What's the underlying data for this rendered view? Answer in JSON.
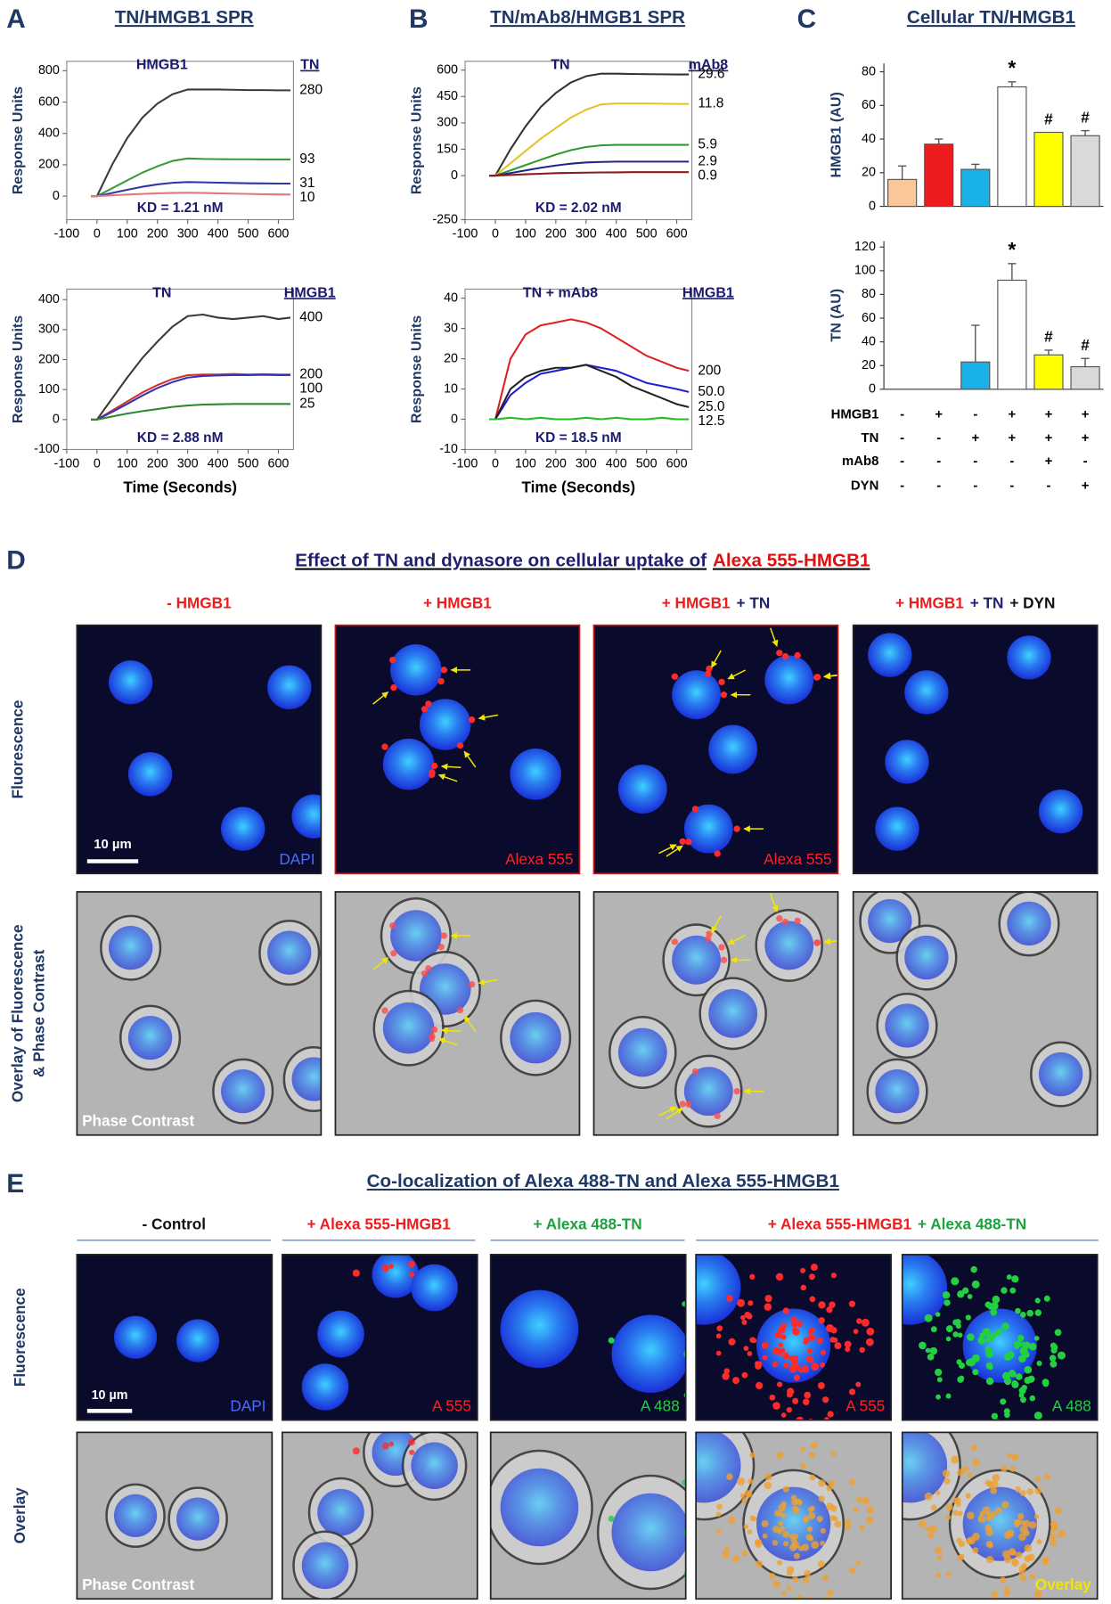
{
  "panels": [
    {
      "letter": "A",
      "title": "TN/HMGB1 SPR"
    },
    {
      "letter": "B",
      "title": "TN/mAb8/HMGB1 SPR"
    },
    {
      "letter": "C",
      "title": "Cellular TN/HMGB1"
    }
  ],
  "chart_data": [
    {
      "type": "line",
      "label": "HMGB1",
      "legend_title": "TN",
      "annotation": "KD = 1.21 nM",
      "y_label": "Response Units",
      "x": [
        -20,
        0,
        50,
        100,
        150,
        200,
        250,
        300,
        350,
        400,
        450,
        500,
        550,
        600,
        640
      ],
      "xlim": [
        -100,
        650
      ],
      "xticks": [
        -100,
        0,
        100,
        200,
        300,
        400,
        500,
        600
      ],
      "ylim": [
        -150,
        860
      ],
      "yticks": [
        0,
        200,
        400,
        600,
        800
      ],
      "series": [
        {
          "name": "280",
          "color": "#3a3a3a",
          "values": [
            0,
            0,
            200,
            370,
            500,
            590,
            650,
            680,
            680,
            680,
            678,
            676,
            676,
            675,
            675
          ]
        },
        {
          "name": "93",
          "color": "#3c9a3c",
          "values": [
            0,
            0,
            50,
            100,
            150,
            190,
            225,
            240,
            237,
            236,
            235,
            235,
            234,
            234,
            234
          ]
        },
        {
          "name": "31",
          "color": "#3535a8",
          "values": [
            0,
            0,
            20,
            40,
            60,
            75,
            85,
            90,
            88,
            86,
            84,
            82,
            81,
            80,
            80
          ]
        },
        {
          "name": "10",
          "color": "#e07a7a",
          "values": [
            0,
            0,
            5,
            10,
            14,
            18,
            20,
            22,
            20,
            18,
            16,
            14,
            12,
            11,
            10
          ]
        }
      ]
    },
    {
      "type": "line",
      "label": "TN",
      "legend_title": "HMGB1",
      "annotation": "KD = 2.88 nM",
      "y_label": "Response Units",
      "x_label": "Time (Seconds)",
      "x": [
        -20,
        0,
        50,
        100,
        150,
        200,
        250,
        300,
        350,
        400,
        450,
        500,
        550,
        600,
        640
      ],
      "xlim": [
        -100,
        650
      ],
      "xticks": [
        -100,
        0,
        100,
        200,
        300,
        400,
        500,
        600
      ],
      "ylim": [
        -100,
        435
      ],
      "yticks": [
        -100,
        0,
        100,
        200,
        300,
        400
      ],
      "series": [
        {
          "name": "400",
          "color": "#3a3a3a",
          "values": [
            0,
            0,
            70,
            140,
            205,
            260,
            310,
            345,
            350,
            340,
            335,
            340,
            345,
            335,
            340
          ]
        },
        {
          "name": "200",
          "color": "#d03030",
          "values": [
            0,
            0,
            30,
            60,
            90,
            115,
            135,
            148,
            150,
            150,
            152,
            150,
            151,
            150,
            150
          ]
        },
        {
          "name": "100",
          "color": "#3535b0",
          "values": [
            0,
            0,
            25,
            52,
            80,
            105,
            125,
            140,
            145,
            147,
            148,
            148,
            149,
            148,
            148
          ]
        },
        {
          "name": "25",
          "color": "#2e8a2e",
          "values": [
            0,
            0,
            10,
            20,
            28,
            35,
            42,
            47,
            50,
            51,
            52,
            52,
            52,
            52,
            52
          ]
        }
      ]
    },
    {
      "type": "line",
      "label": "TN",
      "legend_title": "mAb8",
      "annotation": "KD = 2.02 nM",
      "y_label": "Response Units",
      "x": [
        -20,
        0,
        50,
        100,
        150,
        200,
        250,
        300,
        350,
        400,
        450,
        500,
        550,
        600,
        640
      ],
      "xlim": [
        -100,
        650
      ],
      "xticks": [
        -100,
        0,
        100,
        200,
        300,
        400,
        500,
        600
      ],
      "ylim": [
        -250,
        650
      ],
      "yticks": [
        -250,
        0,
        150,
        300,
        450,
        600
      ],
      "series": [
        {
          "name": "29.6",
          "color": "#333333",
          "values": [
            0,
            0,
            150,
            280,
            390,
            470,
            530,
            565,
            580,
            580,
            578,
            577,
            576,
            575,
            575
          ]
        },
        {
          "name": "11.8",
          "color": "#e6c229",
          "values": [
            0,
            0,
            70,
            140,
            210,
            270,
            330,
            375,
            405,
            410,
            410,
            410,
            409,
            408,
            408
          ]
        },
        {
          "name": "5.9",
          "color": "#2e9b2e",
          "values": [
            0,
            0,
            30,
            60,
            90,
            120,
            145,
            163,
            172,
            175,
            175,
            175,
            175,
            175,
            175
          ]
        },
        {
          "name": "2.9",
          "color": "#23238e",
          "values": [
            0,
            0,
            15,
            30,
            45,
            58,
            68,
            75,
            78,
            80,
            80,
            80,
            80,
            80,
            80
          ]
        },
        {
          "name": "0.9",
          "color": "#8b1a1a",
          "values": [
            0,
            0,
            4,
            8,
            11,
            14,
            16,
            17,
            18,
            19,
            20,
            20,
            20,
            20,
            20
          ]
        }
      ]
    },
    {
      "type": "line",
      "label": "TN + mAb8",
      "legend_title": "HMGB1",
      "annotation": "KD = 18.5 nM",
      "y_label": "Response Units",
      "x_label": "Time (Seconds)",
      "x": [
        -20,
        0,
        50,
        100,
        150,
        200,
        250,
        300,
        350,
        400,
        450,
        500,
        550,
        600,
        640
      ],
      "xlim": [
        -100,
        650
      ],
      "xticks": [
        -100,
        0,
        100,
        200,
        300,
        400,
        500,
        600
      ],
      "ylim": [
        -10,
        43
      ],
      "yticks": [
        -10,
        0,
        10,
        20,
        30,
        40
      ],
      "series": [
        {
          "name": "200",
          "color": "#e02020",
          "values": [
            0,
            0,
            20,
            28,
            31,
            32,
            33,
            32,
            30,
            27,
            24,
            21,
            19,
            17,
            16
          ]
        },
        {
          "name": "50.0",
          "color": "#2020d0",
          "values": [
            0,
            0,
            8,
            12,
            15,
            16,
            17,
            18,
            17,
            16,
            14,
            12,
            11,
            10,
            9
          ]
        },
        {
          "name": "25.0",
          "color": "#222222",
          "values": [
            0,
            0,
            10,
            14,
            16,
            17,
            17,
            18,
            16,
            14,
            11,
            9,
            7,
            5,
            4
          ]
        },
        {
          "name": "12.5",
          "color": "#20c020",
          "values": [
            0,
            0,
            0.5,
            0,
            0.5,
            0,
            0,
            0.5,
            0,
            0.5,
            0,
            0,
            0.5,
            0,
            0
          ]
        }
      ]
    },
    {
      "type": "bar",
      "y_label": "HMGB1 (AU)",
      "values": [
        16,
        37,
        22,
        71,
        44,
        42
      ],
      "errors": [
        8,
        3,
        3,
        3,
        0,
        3
      ],
      "colors": [
        "#f9c79a",
        "#ee1c1c",
        "#1ab0e8",
        "#ffffff",
        "#ffff00",
        "#d9d9d9"
      ],
      "annotations": [
        null,
        null,
        null,
        "*",
        "#",
        "#"
      ],
      "ylim": [
        0,
        85
      ],
      "yticks": [
        0,
        20,
        40,
        60,
        80
      ]
    },
    {
      "type": "bar",
      "y_label": "TN (AU)",
      "values": [
        0,
        0,
        23,
        92,
        29,
        19
      ],
      "errors": [
        0,
        0,
        31,
        14,
        4,
        7
      ],
      "colors": [
        "#f9c79a",
        "#ee1c1c",
        "#1ab0e8",
        "#ffffff",
        "#ffff00",
        "#d9d9d9"
      ],
      "annotations": [
        null,
        null,
        null,
        "*",
        "#",
        "#"
      ],
      "ylim": [
        0,
        125
      ],
      "yticks": [
        0,
        20,
        40,
        60,
        80,
        100,
        120
      ]
    }
  ],
  "panel_c_table": {
    "rows": [
      {
        "label": "HMGB1",
        "cells": [
          "-",
          "+",
          "-",
          "+",
          "+",
          "+"
        ]
      },
      {
        "label": "TN",
        "cells": [
          "-",
          "-",
          "+",
          "+",
          "+",
          "+"
        ]
      },
      {
        "label": "mAb8",
        "cells": [
          "-",
          "-",
          "-",
          "-",
          "+",
          "-"
        ]
      },
      {
        "label": "DYN",
        "cells": [
          "-",
          "-",
          "-",
          "-",
          "-",
          "+"
        ]
      }
    ]
  },
  "panel_d": {
    "letter": "D",
    "title": [
      {
        "text": "Effect of TN and dynasore on cellular uptake of",
        "color": "#1f1f70"
      },
      {
        "text": "Alexa 555-HMGB1",
        "color": "#e01010"
      }
    ],
    "columns": [
      [
        {
          "text": "- HMGB1",
          "color": "#ee1c1c"
        }
      ],
      [
        {
          "text": "+ HMGB1",
          "color": "#ee1c1c"
        }
      ],
      [
        {
          "text": "+ HMGB1",
          "color": "#ee1c1c"
        },
        {
          "text": "+ TN",
          "color": "#1f1f70"
        }
      ],
      [
        {
          "text": "+ HMGB1",
          "color": "#ee1c1c"
        },
        {
          "text": "+ TN",
          "color": "#1f1f70"
        },
        {
          "text": "+ DYN",
          "color": "#111111"
        }
      ]
    ],
    "row_labels": [
      [
        "Fluorescence"
      ],
      [
        "Overlay of Fluorescence",
        "& Phase Contrast"
      ]
    ],
    "scale_bar": "10 µm",
    "fluorescence_labels": [
      "DAPI",
      "Alexa 555",
      "Alexa 555"
    ],
    "overlay_label": "Phase Contrast"
  },
  "panel_e": {
    "letter": "E",
    "title": "Co-localization of Alexa 488-TN and Alexa 555-HMGB1",
    "columns": [
      [
        {
          "text": "- Control",
          "color": "#111111"
        }
      ],
      [
        {
          "text": "+ Alexa 555-HMGB1",
          "color": "#ee1c1c"
        }
      ],
      [
        {
          "text": "+ Alexa 488-TN",
          "color": "#1ca040"
        }
      ],
      [
        {
          "text": "+ Alexa 555-HMGB1",
          "color": "#ee1c1c"
        },
        {
          "text": "+ Alexa 488-TN",
          "color": "#1ca040"
        }
      ]
    ],
    "row_labels": [
      "Fluorescence",
      "Overlay"
    ],
    "scale_bar": "10 µm",
    "fluorescence_labels": [
      "DAPI",
      "A 555",
      "A 488",
      "A 555",
      "A 488"
    ],
    "overlay_labels": [
      "Phase Contrast",
      "Overlay"
    ]
  }
}
